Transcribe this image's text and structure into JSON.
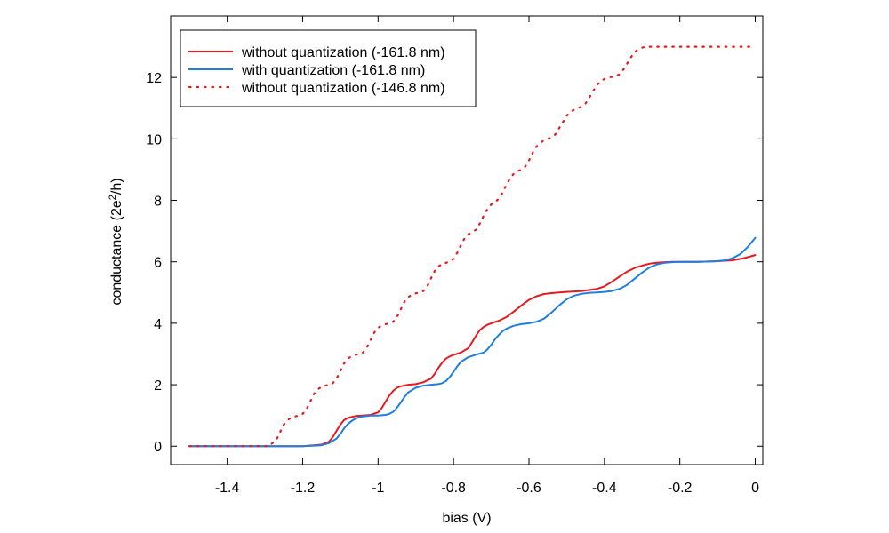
{
  "chart_data": {
    "type": "line",
    "xlabel": "bias (V)",
    "ylabel_main": "conductance (2e",
    "ylabel_sup": "2",
    "ylabel_tail": "/h)",
    "xlim": [
      -1.55,
      0.02
    ],
    "ylim": [
      -0.6,
      14
    ],
    "xticks": [
      -1.4,
      -1.2,
      -1,
      -0.8,
      -0.6,
      -0.4,
      -0.2,
      0
    ],
    "xtick_labels": [
      "-1.4",
      "-1.2",
      "-1",
      "-0.8",
      "-0.6",
      "-0.4",
      "-0.2",
      "0"
    ],
    "yticks": [
      0,
      2,
      4,
      6,
      8,
      10,
      12
    ],
    "ytick_labels": [
      "0",
      "2",
      "4",
      "6",
      "8",
      "10",
      "12"
    ],
    "legend_position": "top-left",
    "series": [
      {
        "name": "without quantization (-161.8 nm)",
        "color": "#e8191e",
        "style": "solid",
        "x": [
          -1.5,
          -1.2,
          -1.15,
          -1.13,
          -1.12,
          -1.11,
          -1.1,
          -1.09,
          -1.08,
          -1.06,
          -1.04,
          -1.02,
          -1.0,
          -0.99,
          -0.98,
          -0.97,
          -0.96,
          -0.95,
          -0.94,
          -0.92,
          -0.9,
          -0.88,
          -0.86,
          -0.85,
          -0.84,
          -0.83,
          -0.82,
          -0.81,
          -0.8,
          -0.78,
          -0.76,
          -0.75,
          -0.74,
          -0.73,
          -0.72,
          -0.71,
          -0.7,
          -0.68,
          -0.66,
          -0.64,
          -0.62,
          -0.6,
          -0.58,
          -0.56,
          -0.54,
          -0.52,
          -0.5,
          -0.46,
          -0.42,
          -0.4,
          -0.38,
          -0.36,
          -0.34,
          -0.32,
          -0.3,
          -0.28,
          -0.26,
          -0.24,
          -0.22,
          -0.2,
          -0.15,
          -0.1,
          -0.06,
          -0.03,
          0.0
        ],
        "y": [
          0,
          0,
          0.05,
          0.15,
          0.3,
          0.5,
          0.7,
          0.85,
          0.92,
          0.98,
          1.0,
          1.02,
          1.1,
          1.25,
          1.45,
          1.65,
          1.8,
          1.9,
          1.95,
          2.0,
          2.02,
          2.08,
          2.2,
          2.35,
          2.55,
          2.72,
          2.85,
          2.92,
          2.97,
          3.05,
          3.2,
          3.4,
          3.6,
          3.78,
          3.88,
          3.95,
          4.0,
          4.08,
          4.2,
          4.38,
          4.58,
          4.76,
          4.88,
          4.95,
          4.98,
          5.0,
          5.02,
          5.05,
          5.12,
          5.2,
          5.35,
          5.52,
          5.68,
          5.8,
          5.88,
          5.94,
          5.97,
          5.99,
          6.0,
          6.0,
          6.0,
          6.02,
          6.05,
          6.12,
          6.22
        ]
      },
      {
        "name": "with quantization (-161.8 nm)",
        "color": "#1f7fe0",
        "style": "solid",
        "x": [
          -1.5,
          -1.2,
          -1.15,
          -1.13,
          -1.11,
          -1.1,
          -1.09,
          -1.08,
          -1.07,
          -1.06,
          -1.04,
          -1.02,
          -1.0,
          -0.98,
          -0.97,
          -0.96,
          -0.95,
          -0.94,
          -0.93,
          -0.92,
          -0.9,
          -0.88,
          -0.86,
          -0.84,
          -0.83,
          -0.82,
          -0.81,
          -0.8,
          -0.79,
          -0.78,
          -0.76,
          -0.74,
          -0.72,
          -0.71,
          -0.7,
          -0.69,
          -0.68,
          -0.67,
          -0.66,
          -0.64,
          -0.62,
          -0.6,
          -0.58,
          -0.56,
          -0.54,
          -0.52,
          -0.5,
          -0.48,
          -0.46,
          -0.44,
          -0.42,
          -0.4,
          -0.38,
          -0.36,
          -0.34,
          -0.32,
          -0.3,
          -0.28,
          -0.26,
          -0.24,
          -0.22,
          -0.2,
          -0.15,
          -0.1,
          -0.08,
          -0.06,
          -0.04,
          -0.02,
          0.0
        ],
        "y": [
          0,
          0,
          0.03,
          0.1,
          0.25,
          0.4,
          0.58,
          0.72,
          0.82,
          0.9,
          0.97,
          1.0,
          1.0,
          1.02,
          1.05,
          1.12,
          1.25,
          1.42,
          1.6,
          1.75,
          1.9,
          1.97,
          2.0,
          2.02,
          2.05,
          2.12,
          2.25,
          2.42,
          2.6,
          2.75,
          2.9,
          2.98,
          3.05,
          3.15,
          3.3,
          3.48,
          3.62,
          3.74,
          3.82,
          3.92,
          3.97,
          4.0,
          4.05,
          4.15,
          4.35,
          4.58,
          4.78,
          4.9,
          4.96,
          4.99,
          5.0,
          5.02,
          5.05,
          5.12,
          5.25,
          5.45,
          5.65,
          5.82,
          5.92,
          5.97,
          5.99,
          6.0,
          6.0,
          6.02,
          6.05,
          6.12,
          6.25,
          6.48,
          6.78
        ]
      },
      {
        "name": "without quantization (-146.8 nm)",
        "color": "#e8191e",
        "style": "dotted",
        "x": [
          -1.5,
          -1.29,
          -1.27,
          -1.26,
          -1.25,
          -1.24,
          -1.23,
          -1.22,
          -1.21,
          -1.2,
          -1.19,
          -1.18,
          -1.17,
          -1.16,
          -1.15,
          -1.14,
          -1.13,
          -1.12,
          -1.11,
          -1.1,
          -1.09,
          -1.08,
          -1.07,
          -1.06,
          -1.05,
          -1.04,
          -1.03,
          -1.02,
          -1.01,
          -1.0,
          -0.99,
          -0.98,
          -0.97,
          -0.96,
          -0.95,
          -0.94,
          -0.93,
          -0.92,
          -0.91,
          -0.9,
          -0.89,
          -0.88,
          -0.87,
          -0.86,
          -0.85,
          -0.84,
          -0.83,
          -0.82,
          -0.81,
          -0.8,
          -0.79,
          -0.78,
          -0.77,
          -0.76,
          -0.75,
          -0.74,
          -0.73,
          -0.72,
          -0.71,
          -0.7,
          -0.69,
          -0.68,
          -0.67,
          -0.66,
          -0.65,
          -0.64,
          -0.63,
          -0.62,
          -0.61,
          -0.6,
          -0.59,
          -0.58,
          -0.57,
          -0.56,
          -0.55,
          -0.54,
          -0.53,
          -0.52,
          -0.51,
          -0.5,
          -0.49,
          -0.48,
          -0.47,
          -0.46,
          -0.45,
          -0.44,
          -0.43,
          -0.42,
          -0.41,
          -0.4,
          -0.39,
          -0.38,
          -0.37,
          -0.36,
          -0.35,
          -0.34,
          -0.33,
          -0.32,
          -0.31,
          -0.3,
          -0.29,
          -0.28,
          -0.27,
          -0.26,
          -0.25,
          -0.24,
          -0.23,
          -0.22,
          -0.21,
          -0.2,
          -0.19,
          -0.18,
          -0.17,
          -0.16,
          -0.15,
          -0.14,
          -0.13,
          -0.12,
          -0.11,
          -0.1,
          -0.09,
          -0.08,
          -0.07,
          -0.06,
          -0.05,
          -0.04,
          -0.03,
          -0.02,
          -0.01,
          0.0
        ],
        "y": [
          0,
          0,
          0.2,
          0.45,
          0.7,
          0.85,
          0.93,
          0.97,
          1.0,
          1.05,
          1.2,
          1.45,
          1.7,
          1.85,
          1.93,
          1.97,
          2.0,
          2.05,
          2.2,
          2.45,
          2.7,
          2.85,
          2.93,
          2.97,
          3.0,
          3.05,
          3.2,
          3.45,
          3.7,
          3.85,
          3.93,
          3.97,
          4.0,
          4.05,
          4.2,
          4.45,
          4.7,
          4.85,
          4.93,
          4.97,
          5.0,
          5.05,
          5.2,
          5.45,
          5.7,
          5.85,
          5.93,
          5.97,
          6.0,
          6.1,
          6.3,
          6.55,
          6.78,
          6.9,
          6.97,
          7.05,
          7.25,
          7.5,
          7.72,
          7.87,
          7.95,
          8.05,
          8.25,
          8.5,
          8.72,
          8.87,
          8.95,
          9.0,
          9.1,
          9.3,
          9.55,
          9.75,
          9.88,
          9.95,
          10.0,
          10.05,
          10.15,
          10.35,
          10.55,
          10.75,
          10.88,
          10.95,
          11.0,
          11.05,
          11.15,
          11.35,
          11.55,
          11.75,
          11.88,
          11.95,
          12.0,
          12.02,
          12.05,
          12.1,
          12.25,
          12.45,
          12.65,
          12.82,
          12.92,
          12.97,
          13.0,
          13.0,
          13.0,
          13.0,
          13.0,
          13.0,
          13.0,
          13.0,
          13.0,
          13.0,
          13.0,
          13.0,
          13.0,
          13.0,
          13.0,
          13.0,
          13.0,
          13.0,
          13.0,
          13.0,
          13.0,
          13.0,
          13.0,
          13.0,
          13.0,
          13.0,
          13.0,
          13.0,
          13.0,
          13.0
        ]
      }
    ]
  }
}
